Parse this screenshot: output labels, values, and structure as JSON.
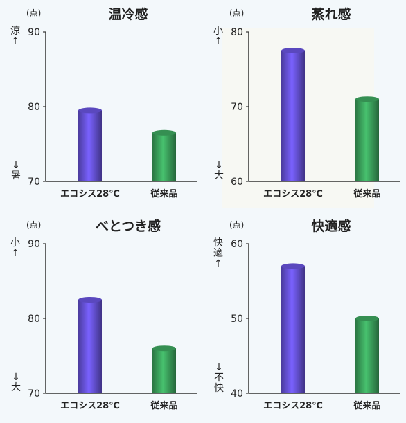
{
  "charts": [
    {
      "title": "温冷感",
      "unit": "(点)",
      "top_label": "涼↑",
      "bottom_label": "↓暑",
      "chart_data": {
        "type": "bar",
        "categories": [
          "エコシス28℃",
          "従来品"
        ],
        "values": [
          79.5,
          76.5
        ],
        "yticks": [
          70,
          80,
          90
        ],
        "ylim": [
          70,
          90
        ],
        "colors": [
          "#6a55e0",
          "#3ea860"
        ]
      }
    },
    {
      "title": "蒸れ感",
      "unit": "(点)",
      "top_label": "小↑",
      "bottom_label": "↓大",
      "chart_data": {
        "type": "bar",
        "categories": [
          "エコシス28℃",
          "従来品"
        ],
        "values": [
          77.5,
          71
        ],
        "yticks": [
          60,
          70,
          80
        ],
        "ylim": [
          60,
          80
        ],
        "colors": [
          "#6a55e0",
          "#3ea860"
        ]
      }
    },
    {
      "title": "べとつき感",
      "unit": "(点)",
      "top_label": "小↑",
      "bottom_label": "↓大",
      "chart_data": {
        "type": "bar",
        "categories": [
          "エコシス28℃",
          "従来品"
        ],
        "values": [
          82.5,
          76
        ],
        "yticks": [
          70,
          80,
          90
        ],
        "ylim": [
          70,
          90
        ],
        "colors": [
          "#6a55e0",
          "#3ea860"
        ]
      }
    },
    {
      "title": "快適感",
      "unit": "(点)",
      "top_label": "快適↑",
      "bottom_label": "↓不快",
      "chart_data": {
        "type": "bar",
        "categories": [
          "エコシス28℃",
          "従来品"
        ],
        "values": [
          57,
          50
        ],
        "yticks": [
          40,
          50,
          60
        ],
        "ylim": [
          40,
          60
        ],
        "colors": [
          "#6a55e0",
          "#3ea860"
        ]
      }
    }
  ]
}
